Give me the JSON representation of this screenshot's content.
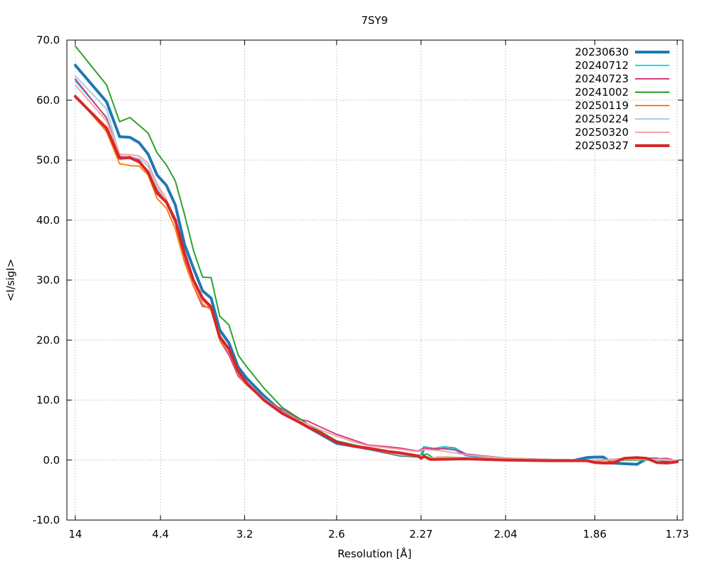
{
  "chart_data": {
    "type": "line",
    "title": "7SY9",
    "xlabel": "Resolution [Å]",
    "ylabel": "<I/sigI>",
    "ylim": [
      -10,
      70
    ],
    "yticks": [
      "-10.0",
      "0.0",
      "10.0",
      "20.0",
      "30.0",
      "40.0",
      "50.0",
      "60.0",
      "70.0"
    ],
    "xticks": [
      "14",
      "4.4",
      "3.2",
      "2.6",
      "2.27",
      "2.04",
      "1.86",
      "1.73"
    ],
    "x_axis_note": "x ticks at 1/d^2 positions (inverse-square resolution scale)",
    "grid": true,
    "legend_position": "top-right",
    "series": [
      {
        "name": "20230630",
        "color": "#1f77b4",
        "line_width": 4,
        "points": [
          [
            14,
            65.8
          ],
          [
            6.71,
            59.7
          ],
          [
            5.84,
            53.9
          ],
          [
            5.35,
            53.8
          ],
          [
            5.0,
            52.9
          ],
          [
            4.72,
            51.0
          ],
          [
            4.48,
            47.5
          ],
          [
            4.27,
            45.8
          ],
          [
            4.09,
            42.5
          ],
          [
            3.93,
            36.0
          ],
          [
            3.79,
            32.0
          ],
          [
            3.66,
            28.2
          ],
          [
            3.55,
            27.0
          ],
          [
            3.45,
            21.7
          ],
          [
            3.35,
            19.5
          ],
          [
            3.26,
            15.5
          ],
          [
            3.18,
            13.6
          ],
          [
            3.04,
            10.7
          ],
          [
            2.91,
            8.0
          ],
          [
            2.75,
            5.5
          ],
          [
            2.6,
            2.8
          ],
          [
            2.46,
            1.9
          ],
          [
            2.34,
            0.8
          ],
          [
            2.27,
            0.6
          ],
          [
            2.26,
            2.1
          ],
          [
            2.23,
            1.8
          ],
          [
            2.2,
            2.1
          ],
          [
            2.17,
            1.9
          ],
          [
            2.14,
            0.9
          ],
          [
            2.04,
            0.2
          ],
          [
            1.95,
            0.0
          ],
          [
            1.9,
            -0.1
          ],
          [
            1.875,
            0.4
          ],
          [
            1.86,
            0.5
          ],
          [
            1.845,
            0.5
          ],
          [
            1.83,
            -0.5
          ],
          [
            1.81,
            -0.6
          ],
          [
            1.79,
            -0.7
          ],
          [
            1.775,
            0.2
          ],
          [
            1.76,
            0.2
          ],
          [
            1.745,
            -0.2
          ],
          [
            1.73,
            -0.2
          ]
        ]
      },
      {
        "name": "20240712",
        "color": "#00e5e5",
        "line_width": 2,
        "points": [
          [
            14,
            63.2
          ],
          [
            6.71,
            57.1
          ],
          [
            5.84,
            50.6
          ],
          [
            5.35,
            50.6
          ],
          [
            5.0,
            49.8
          ],
          [
            4.72,
            48.0
          ],
          [
            4.48,
            44.6
          ],
          [
            4.27,
            42.8
          ],
          [
            4.09,
            39.5
          ],
          [
            3.93,
            34.0
          ],
          [
            3.79,
            29.5
          ],
          [
            3.66,
            26.5
          ],
          [
            3.55,
            25.8
          ],
          [
            3.45,
            20.5
          ],
          [
            3.35,
            18.0
          ],
          [
            3.26,
            14.2
          ],
          [
            3.18,
            12.5
          ],
          [
            3.04,
            10.2
          ],
          [
            2.91,
            8.0
          ],
          [
            2.75,
            5.5
          ],
          [
            2.6,
            3.1
          ],
          [
            2.46,
            2.0
          ],
          [
            2.34,
            1.0
          ],
          [
            2.27,
            0.7
          ],
          [
            2.26,
            2.2
          ],
          [
            2.23,
            1.9
          ],
          [
            2.2,
            2.2
          ],
          [
            2.17,
            1.9
          ],
          [
            2.14,
            0.9
          ],
          [
            2.04,
            0.2
          ],
          [
            1.95,
            0.0
          ],
          [
            1.86,
            -0.1
          ],
          [
            1.79,
            0.2
          ],
          [
            1.745,
            0.1
          ],
          [
            1.73,
            -0.2
          ]
        ]
      },
      {
        "name": "20240723",
        "color": "#d63a7f",
        "line_width": 2,
        "points": [
          [
            14,
            63.5
          ],
          [
            6.71,
            57.0
          ],
          [
            5.84,
            50.5
          ],
          [
            5.35,
            50.6
          ],
          [
            5.0,
            50.0
          ],
          [
            4.72,
            48.0
          ],
          [
            4.48,
            45.0
          ],
          [
            4.27,
            43.0
          ],
          [
            4.09,
            39.5
          ],
          [
            3.93,
            33.5
          ],
          [
            3.79,
            29.0
          ],
          [
            3.66,
            25.6
          ],
          [
            3.55,
            25.5
          ],
          [
            3.45,
            20.0
          ],
          [
            3.35,
            17.5
          ],
          [
            3.26,
            14.0
          ],
          [
            3.18,
            12.5
          ],
          [
            3.04,
            10.0
          ],
          [
            2.91,
            8.5
          ],
          [
            2.8,
            6.8
          ],
          [
            2.75,
            6.5
          ],
          [
            2.68,
            5.5
          ],
          [
            2.6,
            4.3
          ],
          [
            2.52,
            3.3
          ],
          [
            2.46,
            2.5
          ],
          [
            2.38,
            2.2
          ],
          [
            2.34,
            2.0
          ],
          [
            2.28,
            1.5
          ],
          [
            2.26,
            2.0
          ],
          [
            2.23,
            1.9
          ],
          [
            2.2,
            1.9
          ],
          [
            2.17,
            1.7
          ],
          [
            2.14,
            1.0
          ],
          [
            2.04,
            0.3
          ],
          [
            1.95,
            0.1
          ],
          [
            1.86,
            0.0
          ],
          [
            1.79,
            0.3
          ],
          [
            1.76,
            0.2
          ],
          [
            1.745,
            0.3
          ],
          [
            1.73,
            -0.2
          ]
        ]
      },
      {
        "name": "20241002",
        "color": "#2ca02c",
        "line_width": 2,
        "points": [
          [
            14,
            69.0
          ],
          [
            6.71,
            62.5
          ],
          [
            5.84,
            56.4
          ],
          [
            5.35,
            57.1
          ],
          [
            5.0,
            55.8
          ],
          [
            4.72,
            54.5
          ],
          [
            4.48,
            51.2
          ],
          [
            4.27,
            49.2
          ],
          [
            4.09,
            46.5
          ],
          [
            3.93,
            41.0
          ],
          [
            3.79,
            35.0
          ],
          [
            3.66,
            30.5
          ],
          [
            3.55,
            30.4
          ],
          [
            3.45,
            24.0
          ],
          [
            3.35,
            22.5
          ],
          [
            3.26,
            17.5
          ],
          [
            3.18,
            15.5
          ],
          [
            3.04,
            12.0
          ],
          [
            2.91,
            8.8
          ],
          [
            2.75,
            6.0
          ],
          [
            2.6,
            3.2
          ],
          [
            2.46,
            2.0
          ],
          [
            2.34,
            0.9
          ],
          [
            2.27,
            0.8
          ],
          [
            2.25,
            1.0
          ],
          [
            2.23,
            0.3
          ],
          [
            2.2,
            0.5
          ],
          [
            2.14,
            0.4
          ],
          [
            2.04,
            0.3
          ],
          [
            1.95,
            0.0
          ],
          [
            1.86,
            -0.1
          ],
          [
            1.79,
            0.0
          ],
          [
            1.745,
            0.0
          ],
          [
            1.73,
            -0.2
          ]
        ]
      },
      {
        "name": "20250119",
        "color": "#ff7f0e",
        "line_width": 2,
        "points": [
          [
            14,
            60.8
          ],
          [
            6.71,
            54.7
          ],
          [
            5.84,
            49.4
          ],
          [
            5.35,
            49.1
          ],
          [
            5.0,
            49.0
          ],
          [
            4.72,
            47.5
          ],
          [
            4.48,
            43.6
          ],
          [
            4.27,
            42.0
          ],
          [
            4.09,
            38.5
          ],
          [
            3.93,
            33.0
          ],
          [
            3.79,
            29.0
          ],
          [
            3.66,
            26.0
          ],
          [
            3.55,
            25.0
          ],
          [
            3.45,
            20.0
          ],
          [
            3.35,
            18.0
          ],
          [
            3.26,
            14.3
          ],
          [
            3.18,
            12.6
          ],
          [
            3.04,
            10.0
          ],
          [
            2.91,
            7.8
          ],
          [
            2.75,
            5.4
          ],
          [
            2.6,
            3.0
          ],
          [
            2.46,
            1.9
          ],
          [
            2.34,
            0.8
          ],
          [
            2.27,
            0.6
          ],
          [
            2.24,
            0.2
          ],
          [
            2.22,
            0.5
          ],
          [
            2.14,
            0.4
          ],
          [
            2.04,
            0.2
          ],
          [
            1.95,
            0.0
          ],
          [
            1.86,
            -0.1
          ],
          [
            1.79,
            0.1
          ],
          [
            1.745,
            0.0
          ],
          [
            1.73,
            -0.2
          ]
        ]
      },
      {
        "name": "20250224",
        "color": "#a6cee3",
        "line_width": 2,
        "points": [
          [
            14,
            64.0
          ],
          [
            6.71,
            58.5
          ],
          [
            5.84,
            50.8
          ],
          [
            5.35,
            50.5
          ],
          [
            5.0,
            50.3
          ],
          [
            4.72,
            49.0
          ],
          [
            4.48,
            45.5
          ],
          [
            4.27,
            43.5
          ],
          [
            4.09,
            40.0
          ],
          [
            3.93,
            34.5
          ],
          [
            3.79,
            30.0
          ],
          [
            3.66,
            27.0
          ],
          [
            3.55,
            25.8
          ],
          [
            3.45,
            21.0
          ],
          [
            3.35,
            18.5
          ],
          [
            3.26,
            14.8
          ],
          [
            3.18,
            12.8
          ],
          [
            3.04,
            10.3
          ],
          [
            2.91,
            8.0
          ],
          [
            2.75,
            5.6
          ],
          [
            2.6,
            3.0
          ],
          [
            2.46,
            2.0
          ],
          [
            2.34,
            0.9
          ],
          [
            2.27,
            0.7
          ],
          [
            2.24,
            0.4
          ],
          [
            2.14,
            0.4
          ],
          [
            2.04,
            0.2
          ],
          [
            1.95,
            0.0
          ],
          [
            1.86,
            0.0
          ],
          [
            1.79,
            0.1
          ],
          [
            1.745,
            0.0
          ],
          [
            1.73,
            -0.2
          ]
        ]
      },
      {
        "name": "20250320",
        "color": "#f4a3a8",
        "line_width": 2,
        "points": [
          [
            14,
            62.5
          ],
          [
            6.71,
            56.5
          ],
          [
            5.84,
            51.0
          ],
          [
            5.35,
            50.9
          ],
          [
            5.0,
            50.7
          ],
          [
            4.72,
            49.5
          ],
          [
            4.48,
            46.0
          ],
          [
            4.27,
            43.5
          ],
          [
            4.09,
            40.0
          ],
          [
            3.93,
            34.0
          ],
          [
            3.79,
            29.5
          ],
          [
            3.66,
            26.5
          ],
          [
            3.55,
            25.5
          ],
          [
            3.45,
            20.5
          ],
          [
            3.35,
            18.0
          ],
          [
            3.26,
            14.5
          ],
          [
            3.18,
            12.6
          ],
          [
            3.04,
            10.2
          ],
          [
            2.91,
            8.0
          ],
          [
            2.8,
            6.5
          ],
          [
            2.75,
            6.0
          ],
          [
            2.68,
            5.0
          ],
          [
            2.6,
            4.0
          ],
          [
            2.52,
            3.0
          ],
          [
            2.46,
            2.4
          ],
          [
            2.34,
            1.8
          ],
          [
            2.28,
            1.4
          ],
          [
            2.26,
            1.8
          ],
          [
            2.2,
            1.5
          ],
          [
            2.14,
            0.9
          ],
          [
            2.04,
            0.3
          ],
          [
            1.95,
            0.1
          ],
          [
            1.86,
            0.0
          ],
          [
            1.79,
            0.2
          ],
          [
            1.745,
            0.1
          ],
          [
            1.73,
            -0.2
          ]
        ]
      },
      {
        "name": "20250327",
        "color": "#d62728",
        "line_width": 4,
        "points": [
          [
            14,
            60.6
          ],
          [
            6.71,
            55.3
          ],
          [
            5.84,
            50.3
          ],
          [
            5.35,
            50.4
          ],
          [
            5.0,
            49.7
          ],
          [
            4.72,
            48.0
          ],
          [
            4.48,
            44.5
          ],
          [
            4.27,
            43.0
          ],
          [
            4.09,
            40.0
          ],
          [
            3.93,
            34.5
          ],
          [
            3.79,
            30.0
          ],
          [
            3.66,
            27.0
          ],
          [
            3.55,
            25.5
          ],
          [
            3.45,
            20.5
          ],
          [
            3.35,
            18.5
          ],
          [
            3.26,
            14.8
          ],
          [
            3.18,
            12.8
          ],
          [
            3.04,
            10.0
          ],
          [
            2.91,
            7.8
          ],
          [
            2.8,
            6.3
          ],
          [
            2.75,
            5.5
          ],
          [
            2.68,
            4.5
          ],
          [
            2.6,
            3.0
          ],
          [
            2.52,
            2.3
          ],
          [
            2.46,
            2.0
          ],
          [
            2.38,
            1.4
          ],
          [
            2.34,
            1.2
          ],
          [
            2.28,
            0.7
          ],
          [
            2.27,
            0.3
          ],
          [
            2.26,
            0.6
          ],
          [
            2.24,
            0.1
          ],
          [
            2.14,
            0.2
          ],
          [
            2.04,
            0.0
          ],
          [
            1.95,
            -0.1
          ],
          [
            1.875,
            -0.1
          ],
          [
            1.86,
            -0.4
          ],
          [
            1.845,
            -0.5
          ],
          [
            1.83,
            -0.5
          ],
          [
            1.81,
            0.3
          ],
          [
            1.79,
            0.4
          ],
          [
            1.775,
            0.3
          ],
          [
            1.76,
            -0.4
          ],
          [
            1.745,
            -0.5
          ],
          [
            1.73,
            -0.3
          ]
        ]
      }
    ]
  }
}
